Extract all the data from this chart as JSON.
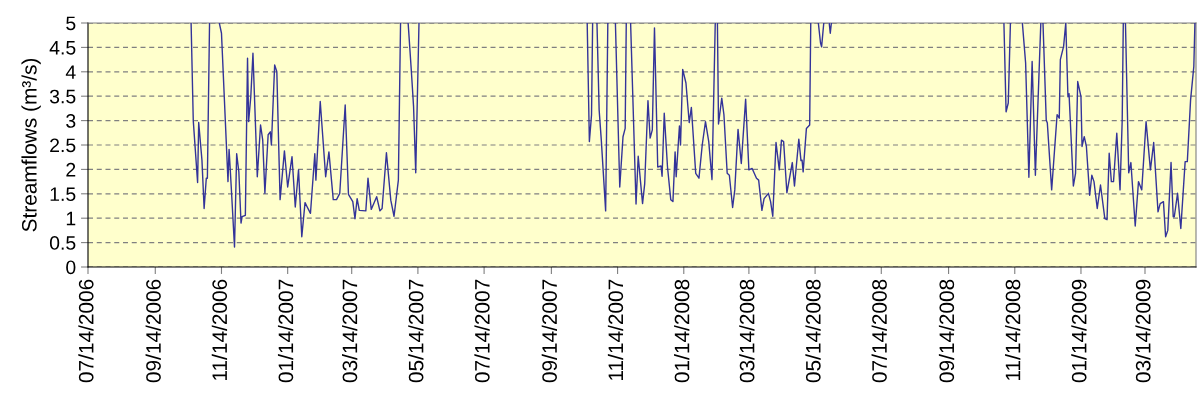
{
  "chart_data": {
    "type": "line",
    "ylabel": "Streamflows (m³/s)",
    "xlim": [
      "2006-07-14",
      "2009-04-30"
    ],
    "ylim": [
      0,
      5
    ],
    "xticks": [
      {
        "value": "2006-07-14",
        "label": "07/14/2006"
      },
      {
        "value": "2006-09-14",
        "label": "09/14/2006"
      },
      {
        "value": "2006-11-14",
        "label": "11/14/2006"
      },
      {
        "value": "2007-01-14",
        "label": "01/14/2007"
      },
      {
        "value": "2007-03-14",
        "label": "03/14/2007"
      },
      {
        "value": "2007-05-14",
        "label": "05/14/2007"
      },
      {
        "value": "2007-07-14",
        "label": "07/14/2007"
      },
      {
        "value": "2007-09-14",
        "label": "09/14/2007"
      },
      {
        "value": "2007-11-14",
        "label": "11/14/2007"
      },
      {
        "value": "2008-01-14",
        "label": "01/14/2008"
      },
      {
        "value": "2008-03-14",
        "label": "03/14/2008"
      },
      {
        "value": "2008-05-14",
        "label": "05/14/2008"
      },
      {
        "value": "2008-07-14",
        "label": "07/14/2008"
      },
      {
        "value": "2008-09-14",
        "label": "09/14/2008"
      },
      {
        "value": "2008-11-14",
        "label": "11/14/2008"
      },
      {
        "value": "2009-01-14",
        "label": "01/14/2009"
      },
      {
        "value": "2009-03-14",
        "label": "03/14/2009"
      }
    ],
    "yticks": [
      0,
      0.5,
      1,
      1.5,
      2,
      2.5,
      3,
      3.5,
      4,
      4.5,
      5
    ],
    "grid": "y",
    "series": [
      {
        "color": "#333399",
        "x": [
          "2006-10-17",
          "2006-10-19",
          "2006-10-23",
          "2006-10-24",
          "2006-10-27",
          "2006-10-29",
          "2006-10-31",
          "2006-11-01",
          "2006-11-03",
          "2006-11-08",
          "2006-11-12",
          "2006-11-14",
          "2006-11-19",
          "2006-11-20",
          "2006-11-21",
          "2006-11-23",
          "2006-11-26",
          "2006-11-28",
          "2006-11-30",
          "2006-12-02",
          "2006-12-03",
          "2006-12-06",
          "2006-12-08",
          "2006-12-09",
          "2006-12-11",
          "2006-12-13",
          "2006-12-17",
          "2006-12-20",
          "2006-12-22",
          "2006-12-24",
          "2006-12-27",
          "2006-12-29",
          "2006-12-30",
          "2007-01-02",
          "2007-01-04",
          "2007-01-07",
          "2007-01-11",
          "2007-01-14",
          "2007-01-18",
          "2007-01-21",
          "2007-01-24",
          "2007-01-27",
          "2007-01-30",
          "2007-02-01",
          "2007-02-04",
          "2007-02-08",
          "2007-02-09",
          "2007-02-13",
          "2007-02-18",
          "2007-02-21",
          "2007-02-25",
          "2007-02-28",
          "2007-03-03",
          "2007-03-08",
          "2007-03-11",
          "2007-03-15",
          "2007-03-17",
          "2007-03-19",
          "2007-03-21",
          "2007-03-27",
          "2007-03-29",
          "2007-04-01",
          "2007-04-06",
          "2007-04-09",
          "2007-04-11",
          "2007-04-15",
          "2007-04-19",
          "2007-04-22",
          "2007-04-26",
          "2007-04-28",
          "2007-05-02",
          "2007-05-05",
          "2007-05-08",
          "2007-05-10",
          "2007-05-12",
          "2007-05-15",
          "2007-07-14",
          "2007-10-17",
          "2007-10-19",
          "2007-10-21",
          "2007-10-22",
          "2007-10-24",
          "2007-10-26",
          "2007-10-28",
          "2007-10-30",
          "2007-11-03",
          "2007-11-05",
          "2007-11-09",
          "2007-11-12",
          "2007-11-16",
          "2007-11-19",
          "2007-11-21",
          "2007-11-22",
          "2007-11-24",
          "2007-11-26",
          "2007-12-01",
          "2007-12-03",
          "2007-12-05",
          "2007-12-07",
          "2007-12-09",
          "2007-12-12",
          "2007-12-14",
          "2007-12-16",
          "2007-12-18",
          "2007-12-21",
          "2007-12-24",
          "2007-12-25",
          "2007-12-27",
          "2007-12-30",
          "2008-01-02",
          "2008-01-04",
          "2008-01-06",
          "2008-01-07",
          "2008-01-10",
          "2008-01-11",
          "2008-01-13",
          "2008-01-16",
          "2008-01-19",
          "2008-01-21",
          "2008-01-25",
          "2008-01-28",
          "2008-01-31",
          "2008-02-03",
          "2008-02-06",
          "2008-02-09",
          "2008-02-12",
          "2008-02-13",
          "2008-02-14",
          "2008-02-15",
          "2008-02-18",
          "2008-02-20",
          "2008-02-23",
          "2008-02-25",
          "2008-02-28",
          "2008-03-01",
          "2008-03-04",
          "2008-03-07",
          "2008-03-11",
          "2008-03-14",
          "2008-03-17",
          "2008-03-21",
          "2008-03-23",
          "2008-03-26",
          "2008-03-28",
          "2008-04-01",
          "2008-04-03",
          "2008-04-05",
          "2008-04-08",
          "2008-04-11",
          "2008-04-13",
          "2008-04-15",
          "2008-04-18",
          "2008-04-23",
          "2008-04-25",
          "2008-04-29",
          "2008-05-01",
          "2008-05-02",
          "2008-05-03",
          "2008-05-06",
          "2008-05-09",
          "2008-05-10",
          "2008-05-14",
          "2008-05-17",
          "2008-05-19",
          "2008-05-20",
          "2008-05-22",
          "2008-05-25",
          "2008-05-27",
          "2008-05-28",
          "2008-05-29",
          "2008-09-21",
          "2008-11-04",
          "2008-11-06",
          "2008-11-08",
          "2008-11-10",
          "2008-11-15",
          "2008-11-21",
          "2008-11-24",
          "2008-11-27",
          "2008-11-30",
          "2008-12-03",
          "2008-12-08",
          "2008-12-09",
          "2008-12-10",
          "2008-12-13",
          "2008-12-14",
          "2008-12-18",
          "2008-12-23",
          "2008-12-25",
          "2008-12-26",
          "2008-12-29",
          "2008-12-31",
          "2009-01-02",
          "2009-01-03",
          "2009-01-07",
          "2009-01-09",
          "2009-01-11",
          "2009-01-14",
          "2009-01-15",
          "2009-01-17",
          "2009-01-19",
          "2009-01-22",
          "2009-01-24",
          "2009-01-26",
          "2009-01-29",
          "2009-02-01",
          "2009-02-05",
          "2009-02-07",
          "2009-02-09",
          "2009-02-11",
          "2009-02-13",
          "2009-02-16",
          "2009-02-19",
          "2009-02-21",
          "2009-02-22",
          "2009-02-23",
          "2009-02-24",
          "2009-02-27",
          "2009-03-01",
          "2009-03-05",
          "2009-03-08",
          "2009-03-11",
          "2009-03-15",
          "2009-03-19",
          "2009-03-22",
          "2009-03-26",
          "2009-03-28",
          "2009-03-31",
          "2009-04-02",
          "2009-04-04",
          "2009-04-07",
          "2009-04-09",
          "2009-04-10",
          "2009-04-13",
          "2009-04-16",
          "2009-04-20",
          "2009-04-22",
          "2009-04-25",
          "2009-04-28",
          "2009-04-29"
        ],
        "values": [
          5,
          3.0,
          1.73,
          2.96,
          2.19,
          1.2,
          1.82,
          1.82,
          5,
          null,
          5,
          4.79,
          2.26,
          1.75,
          2.41,
          1.64,
          0.41,
          2.32,
          1.95,
          0.9,
          1.03,
          1.06,
          4.28,
          2.98,
          3.49,
          4.38,
          1.85,
          2.91,
          2.6,
          1.51,
          2.71,
          2.77,
          2.5,
          4.14,
          4.0,
          1.38,
          2.38,
          1.64,
          2.26,
          1.23,
          1.99,
          0.62,
          1.32,
          1.23,
          1.1,
          2.32,
          1.78,
          3.39,
          1.85,
          2.36,
          1.38,
          1.38,
          1.51,
          3.32,
          1.49,
          1.34,
          0.99,
          1.4,
          1.16,
          1.15,
          1.82,
          1.18,
          1.44,
          1.15,
          1.2,
          2.34,
          1.37,
          1.04,
          1.78,
          5,
          null,
          5,
          4.0,
          3.29,
          1.93,
          5,
          null,
          5,
          2.57,
          3.12,
          5,
          null,
          5,
          3.22,
          2.6,
          1.15,
          5,
          null,
          5,
          1.64,
          2.67,
          2.84,
          5,
          null,
          5,
          1.29,
          2.27,
          1.78,
          1.3,
          1.71,
          3.41,
          2.64,
          2.81,
          4.9,
          2.05,
          2.07,
          1.86,
          3.15,
          2.05,
          1.38,
          1.34,
          2.36,
          1.85,
          2.89,
          2.5,
          4.05,
          3.77,
          2.96,
          3.27,
          1.92,
          1.82,
          2.5,
          2.98,
          2.57,
          1.79,
          5,
          null,
          5,
          2.93,
          3.46,
          3.12,
          1.92,
          1.88,
          1.22,
          1.58,
          2.82,
          2.12,
          3.44,
          1.99,
          2.02,
          1.82,
          1.78,
          1.16,
          1.4,
          1.51,
          1.34,
          1.04,
          2.55,
          1.99,
          2.6,
          2.57,
          1.52,
          2.14,
          1.66,
          2.62,
          2.18,
          2.19,
          1.95,
          2.84,
          2.91,
          5,
          null,
          5,
          4.59,
          4.51,
          5,
          null,
          5,
          4.79,
          5,
          null,
          5,
          3.18,
          3.36,
          5,
          null,
          5,
          4.18,
          1.84,
          4.21,
          1.88,
          5,
          null,
          5,
          3.01,
          2.95,
          1.58,
          3.12,
          3.05,
          4.25,
          4.52,
          5,
          3.49,
          3.55,
          1.66,
          1.92,
          3.8,
          3.49,
          2.47,
          2.67,
          2.47,
          1.47,
          1.88,
          1.75,
          1.2,
          1.68,
          0.99,
          0.97,
          2.33,
          1.75,
          1.75,
          2.74,
          1.58,
          3.01,
          5,
          null,
          5,
          1.93,
          2.14,
          0.84,
          1.75,
          1.58,
          2.98,
          1.99,
          2.55,
          1.13,
          1.3,
          1.34,
          0.62,
          0.75,
          2.14,
          1.03,
          1.03,
          1.51,
          0.79,
          2.16,
          2.16,
          3.42,
          4.11,
          5
        ]
      }
    ]
  }
}
